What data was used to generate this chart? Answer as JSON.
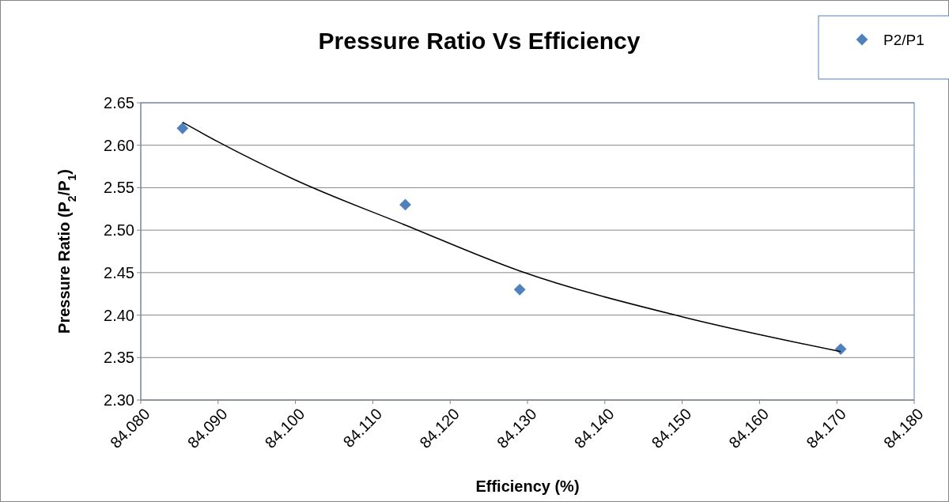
{
  "chart_data": {
    "type": "scatter",
    "title": "Pressure Ratio Vs Efficiency",
    "xlabel": "Efficiency (%)",
    "ylabel": "Pressure Ratio (P$_{2}$/P$_{1}$)",
    "x": [
      84.0854,
      84.1142,
      84.129,
      84.1705
    ],
    "series": [
      {
        "name": "P2/P1",
        "color": "#4f81bd",
        "values": [
          2.62,
          2.53,
          2.43,
          2.36
        ]
      },
      {
        "type": "line",
        "color": "#000000",
        "marker": "none",
        "x": [
          84.0854,
          84.09,
          84.1,
          84.1142,
          84.129,
          84.15,
          84.1705
        ],
        "values": [
          2.627,
          2.604,
          2.559,
          2.506,
          2.452,
          2.398,
          2.357
        ]
      }
    ],
    "xlim": [
      84.08,
      84.18
    ],
    "xticks": [
      {
        "value": 84.08,
        "label": "84.080"
      },
      {
        "value": 84.09,
        "label": "84.090"
      },
      {
        "value": 84.1,
        "label": "84.100"
      },
      {
        "value": 84.11,
        "label": "84.110"
      },
      {
        "value": 84.12,
        "label": "84.120"
      },
      {
        "value": 84.13,
        "label": "84.130"
      },
      {
        "value": 84.14,
        "label": "84.140"
      },
      {
        "value": 84.15,
        "label": "84.150"
      },
      {
        "value": 84.16,
        "label": "84.160"
      },
      {
        "value": 84.17,
        "label": "84.170"
      },
      {
        "value": 84.18,
        "label": "84.180"
      }
    ],
    "ylim": [
      2.3,
      2.65
    ],
    "yticks": [
      {
        "value": 2.3,
        "label": "2.30"
      },
      {
        "value": 2.35,
        "label": "2.35"
      },
      {
        "value": 2.4,
        "label": "2.40"
      },
      {
        "value": 2.45,
        "label": "2.45"
      },
      {
        "value": 2.5,
        "label": "2.50"
      },
      {
        "value": 2.55,
        "label": "2.55"
      },
      {
        "value": 2.6,
        "label": "2.60"
      },
      {
        "value": 2.65,
        "label": "2.65"
      }
    ],
    "grid": "y",
    "legend": "top right",
    "marker": "diamond"
  }
}
